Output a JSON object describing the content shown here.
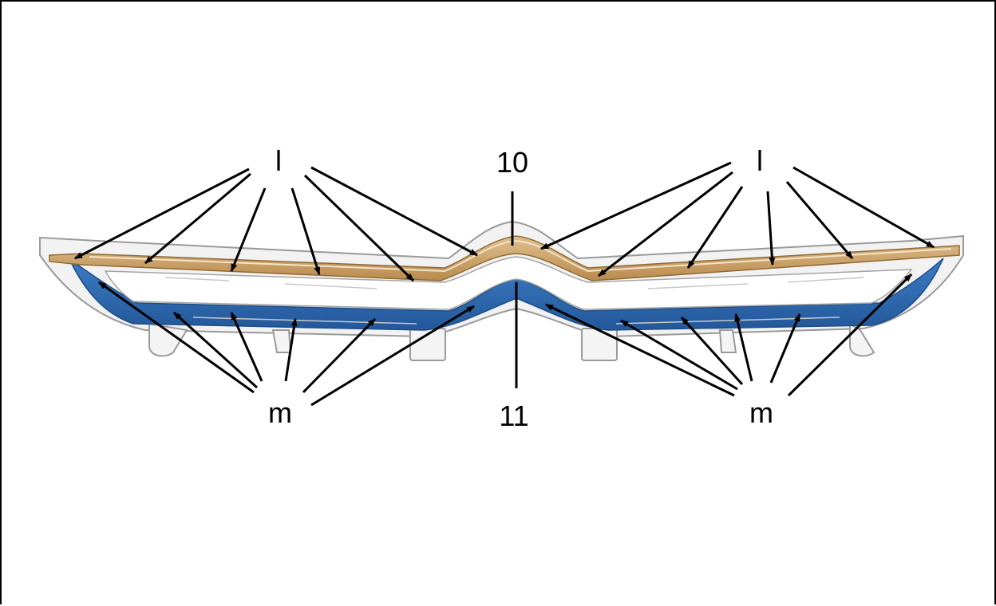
{
  "diagram": {
    "labels": {
      "l_left": "l",
      "l_right": "l",
      "part_10": "10",
      "part_11": "11",
      "m_left": "m",
      "m_right": "m"
    },
    "colors": {
      "upper_strip": "#c89a5c",
      "lower_strip": "#2f6db3",
      "body": "#ffffff",
      "outline": "#9a9a9a",
      "arrow": "#000000",
      "frame": "#000000"
    }
  }
}
